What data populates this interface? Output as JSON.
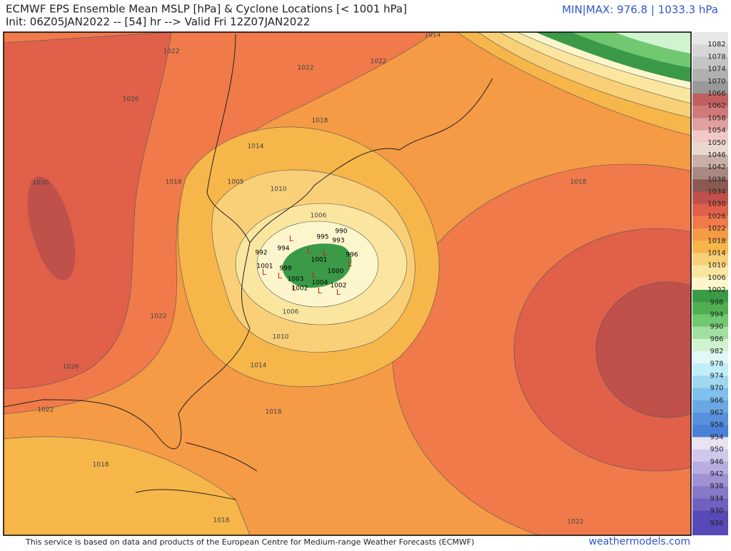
{
  "header": {
    "title": "ECMWF EPS Ensemble Mean MSLP [hPa] & Cyclone Locations [< 1001 hPa]",
    "subtitle": "Init: 06Z05JAN2022 -- [54] hr --> Valid Fri 12Z07JAN2022",
    "minmax": "MIN|MAX: 976.8 | 1033.3 hPa"
  },
  "map": {
    "contour_labels": [
      "1022",
      "1022",
      "1022",
      "1014",
      "1026",
      "1018",
      "1014",
      "1018",
      "1005",
      "1010",
      "1006",
      "1018",
      "1030",
      "1022",
      "1006",
      "1010",
      "1014",
      "1026",
      "1022",
      "1018",
      "1018",
      "1018",
      "1022"
    ],
    "cyclone_labels": [
      "990",
      "995",
      "994",
      "993",
      "996",
      "1001",
      "1000",
      "1003",
      "1004",
      "1002",
      "1002",
      "1001",
      "992",
      "999"
    ],
    "cyclone_symbol": "L"
  },
  "colorbar": {
    "labels": [
      "1082",
      "1078",
      "1074",
      "1070",
      "1066",
      "1062",
      "1058",
      "1054",
      "1050",
      "1046",
      "1042",
      "1038",
      "1034",
      "1030",
      "1026",
      "1022",
      "1018",
      "1014",
      "1010",
      "1006",
      "1002",
      "998",
      "994",
      "990",
      "986",
      "982",
      "978",
      "974",
      "970",
      "966",
      "962",
      "958",
      "954",
      "950",
      "946",
      "942",
      "938",
      "934",
      "930",
      "926"
    ],
    "colors": [
      "#e8e8e8",
      "#d6d6d6",
      "#c4c4c4",
      "#b0b0b0",
      "#999999",
      "#c06060",
      "#d07a7a",
      "#e0a0a0",
      "#f0c8c8",
      "#e8d8d0",
      "#c8b0a8",
      "#a88880",
      "#8a5a52",
      "#c0504a",
      "#e0604a",
      "#f07a4a",
      "#f59a45",
      "#f7b64a",
      "#f9d078",
      "#fbe6a0",
      "#fdf6cc",
      "#3a9a48",
      "#50b050",
      "#70c870",
      "#a0e0a0",
      "#d0f4d0",
      "#e0f8f8",
      "#c0eef8",
      "#a0d8f0",
      "#80c0ec",
      "#6aa8e4",
      "#5890dc",
      "#4a80d8",
      "#e8e4f4",
      "#d0c8ec",
      "#b8ace0",
      "#a090d4",
      "#8878c8",
      "#7060c0",
      "#5848b8"
    ]
  },
  "footer": {
    "credit": "This service is based on data and products of the European Centre for Medium-range Weather Forecasts (ECMWF)",
    "brand": "weathermodels.com"
  }
}
